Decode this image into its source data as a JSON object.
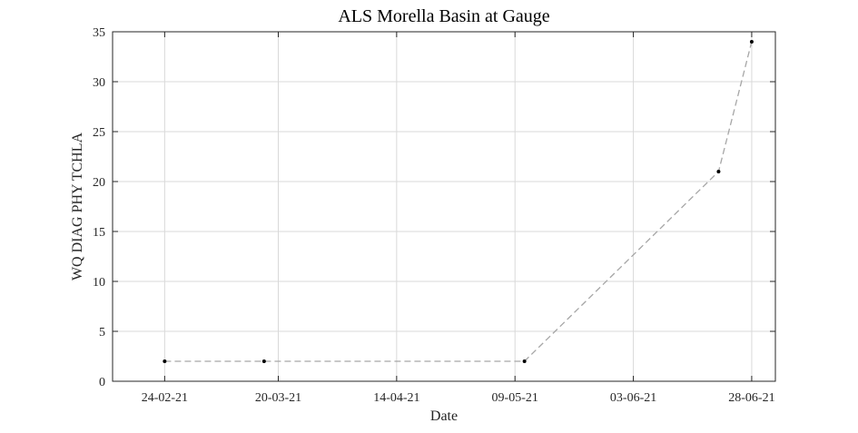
{
  "chart_data": {
    "type": "line",
    "title": "ALS Morella Basin at Gauge",
    "xlabel": "Date",
    "ylabel": "WQ DIAG PHY TCHLA",
    "x_ticks": [
      "24-02-21",
      "20-03-21",
      "14-04-21",
      "09-05-21",
      "03-06-21",
      "28-06-21"
    ],
    "y_ticks": [
      "0",
      "5",
      "10",
      "15",
      "20",
      "25",
      "30",
      "35"
    ],
    "xlim": [
      "2021-02-13",
      "2021-07-03"
    ],
    "ylim": [
      0,
      35
    ],
    "grid": true,
    "series": [
      {
        "x": [
          "2021-02-24",
          "2021-03-17",
          "2021-05-11",
          "2021-06-21",
          "2021-06-28"
        ],
        "y": [
          2,
          2,
          2,
          21,
          34
        ],
        "line_style": "dashed",
        "line_color": "#a6a6a6",
        "marker": "dot",
        "marker_color": "#000000"
      }
    ]
  }
}
